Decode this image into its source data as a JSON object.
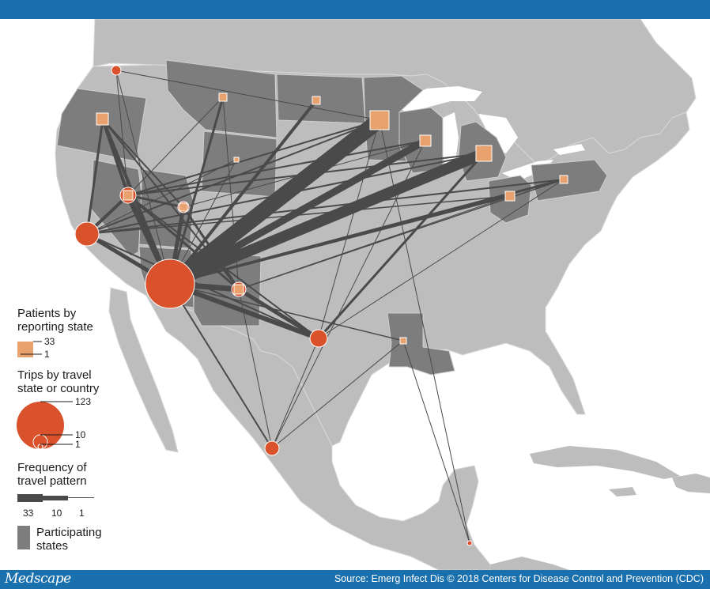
{
  "header_color": "#1a70ad",
  "colors": {
    "ocean": "#ffffff",
    "land": "#bdbdbd",
    "participating_state": "#7d7d7d",
    "travel_destination": "#d9522b",
    "reporting_state": "#e9a26e",
    "route": "#4a4a4a"
  },
  "footer": {
    "brand": "Medscape",
    "source": "Source: Emerg Infect Dis © 2018 Centers for Disease Control and Prevention (CDC)"
  },
  "legend": {
    "patients": {
      "title_line1": "Patients by",
      "title_line2": "reporting state",
      "max_value": "33",
      "min_value": "1"
    },
    "trips": {
      "title_line1": "Trips by travel",
      "title_line2": "state or country",
      "max_value": "123",
      "mid_value": "10",
      "min_value": "1"
    },
    "frequency": {
      "title_line1": "Frequency of",
      "title_line2": "travel pattern",
      "values": [
        "33",
        "10",
        "1"
      ]
    },
    "participating": {
      "label_line1": "Participating",
      "label_line2": "states"
    }
  }
}
